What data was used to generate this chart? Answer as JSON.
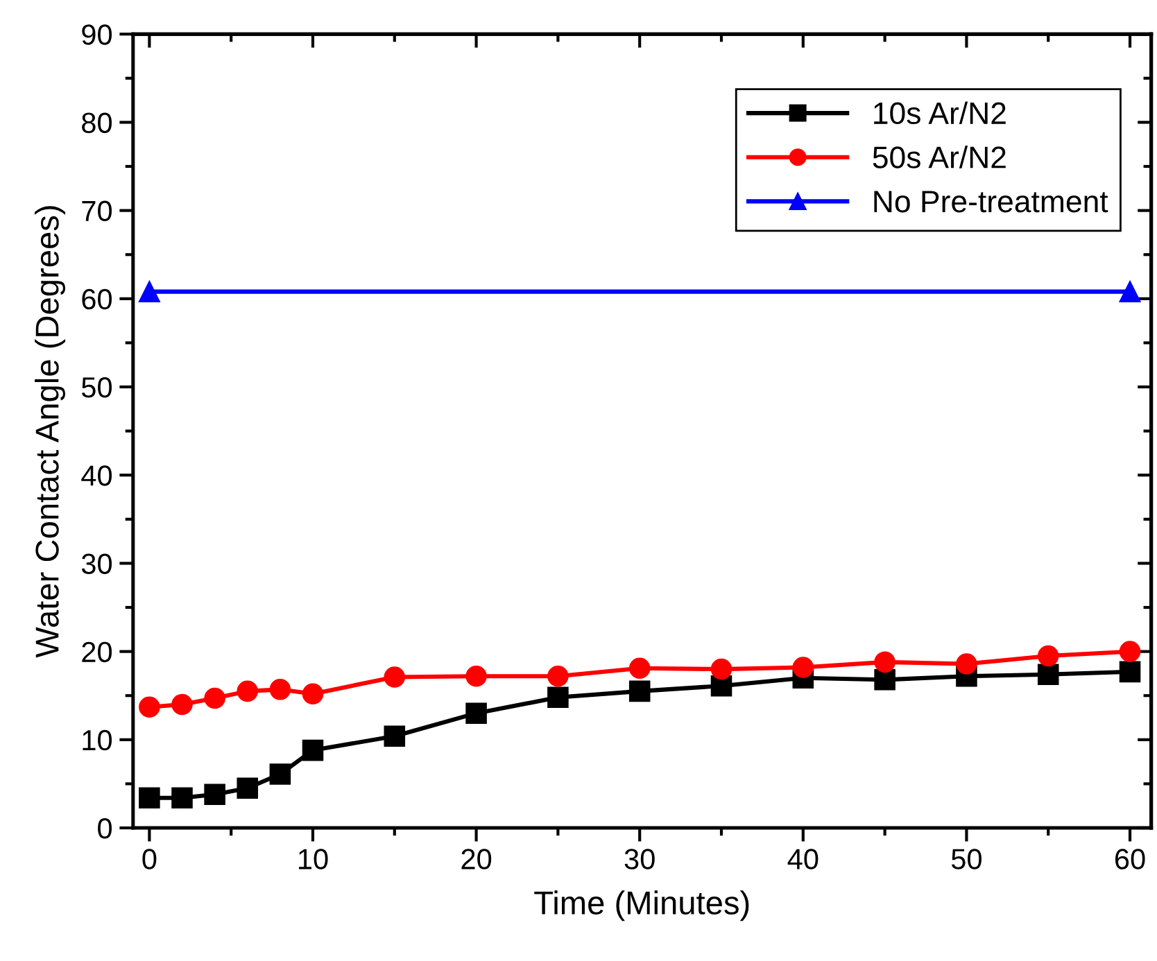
{
  "chart_data": {
    "type": "line",
    "xlabel": "Time (Minutes)",
    "ylabel": "Water Contact Angle (Degrees)",
    "xlim": [
      -1,
      61.3
    ],
    "xticks": [
      0,
      10,
      20,
      30,
      40,
      50,
      60
    ],
    "ylim": [
      0,
      90
    ],
    "yticks": [
      0,
      10,
      20,
      30,
      40,
      50,
      60,
      70,
      80,
      90
    ],
    "legend": "top right",
    "grid": false,
    "series": [
      {
        "name": "10s Ar/N2",
        "color": "#000000",
        "marker": "square",
        "x": [
          0,
          2,
          4,
          6,
          8,
          10,
          15,
          20,
          25,
          30,
          35,
          40,
          45,
          50,
          55,
          60
        ],
        "values": [
          3.4,
          3.4,
          3.8,
          4.5,
          6.1,
          8.8,
          10.4,
          13.0,
          14.8,
          15.5,
          16.1,
          17.0,
          16.8,
          17.2,
          17.4,
          17.7
        ]
      },
      {
        "name": "50s Ar/N2",
        "color": "#ff0000",
        "marker": "circle",
        "x": [
          0,
          2,
          4,
          6,
          8,
          10,
          15,
          20,
          25,
          30,
          35,
          40,
          45,
          50,
          55,
          60
        ],
        "values": [
          13.7,
          14.0,
          14.7,
          15.5,
          15.7,
          15.2,
          17.1,
          17.2,
          17.2,
          18.1,
          18.0,
          18.2,
          18.8,
          18.6,
          19.5,
          20.0
        ]
      },
      {
        "name": "No Pre-treatment",
        "color": "#0000ff",
        "marker": "triangle",
        "x": [
          0,
          60
        ],
        "values": [
          60.8,
          60.8
        ]
      }
    ]
  }
}
